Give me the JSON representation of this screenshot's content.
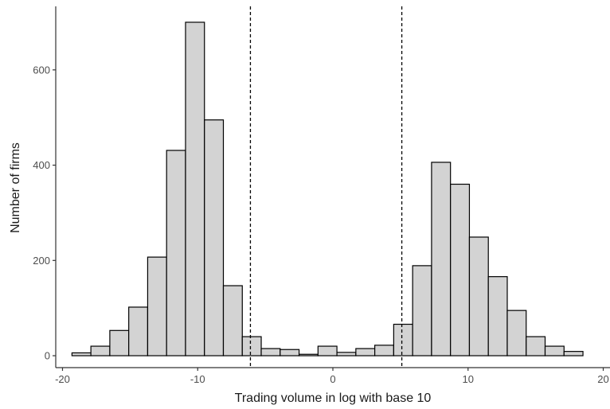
{
  "chart_data": {
    "type": "bar",
    "subtype": "histogram",
    "xlabel": "Trading volume in log with base 10",
    "ylabel": "Number of firms",
    "xlim": [
      -20.5,
      20.5
    ],
    "ylim": [
      -25,
      730
    ],
    "x_ticks": [
      -20,
      -10,
      0,
      10,
      20
    ],
    "y_ticks": [
      0,
      200,
      400,
      600
    ],
    "bin_width": 1.4,
    "bins": [
      {
        "start": -19.3,
        "end": -17.9,
        "count": 6
      },
      {
        "start": -17.9,
        "end": -16.5,
        "count": 20
      },
      {
        "start": -16.5,
        "end": -15.1,
        "count": 53
      },
      {
        "start": -15.1,
        "end": -13.7,
        "count": 102
      },
      {
        "start": -13.7,
        "end": -12.3,
        "count": 207
      },
      {
        "start": -12.3,
        "end": -10.9,
        "count": 431
      },
      {
        "start": -10.9,
        "end": -9.5,
        "count": 700
      },
      {
        "start": -9.5,
        "end": -8.1,
        "count": 495
      },
      {
        "start": -8.1,
        "end": -6.7,
        "count": 147
      },
      {
        "start": -6.7,
        "end": -5.3,
        "count": 40
      },
      {
        "start": -5.3,
        "end": -3.9,
        "count": 15
      },
      {
        "start": -3.9,
        "end": -2.5,
        "count": 13
      },
      {
        "start": -2.5,
        "end": -1.1,
        "count": 3
      },
      {
        "start": -1.1,
        "end": 0.3,
        "count": 20
      },
      {
        "start": 0.3,
        "end": 1.7,
        "count": 7
      },
      {
        "start": 1.7,
        "end": 3.1,
        "count": 15
      },
      {
        "start": 3.1,
        "end": 4.5,
        "count": 22
      },
      {
        "start": 4.5,
        "end": 5.9,
        "count": 66
      },
      {
        "start": 5.9,
        "end": 7.3,
        "count": 189
      },
      {
        "start": 7.3,
        "end": 8.7,
        "count": 406
      },
      {
        "start": 8.7,
        "end": 10.1,
        "count": 360
      },
      {
        "start": 10.1,
        "end": 11.5,
        "count": 249
      },
      {
        "start": 11.5,
        "end": 12.9,
        "count": 166
      },
      {
        "start": 12.9,
        "end": 14.3,
        "count": 95
      },
      {
        "start": 14.3,
        "end": 15.7,
        "count": 40
      },
      {
        "start": 15.7,
        "end": 17.1,
        "count": 20
      },
      {
        "start": 17.1,
        "end": 18.5,
        "count": 9
      }
    ],
    "reference_lines": [
      {
        "axis": "x",
        "value": -6.1,
        "style": "dashed"
      },
      {
        "axis": "x",
        "value": 5.1,
        "style": "dashed"
      }
    ],
    "grid": false,
    "legend": "none",
    "colors": {
      "bar_fill": "#d3d3d3",
      "bar_stroke": "#000000"
    }
  }
}
